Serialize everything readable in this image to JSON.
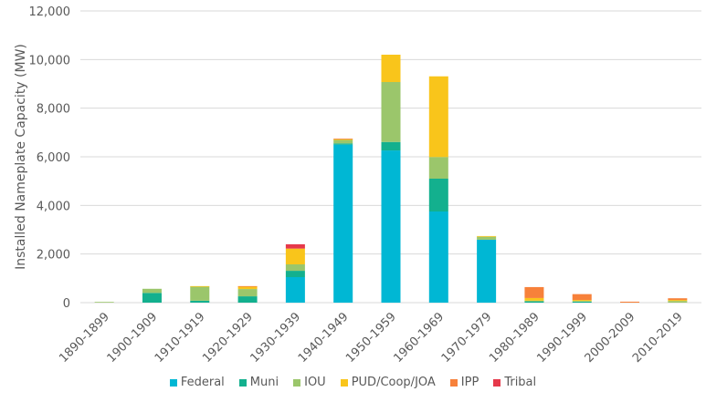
{
  "chart_data": {
    "type": "bar",
    "stacked": true,
    "title": "",
    "xlabel": "",
    "ylabel": "Installed Nameplate Capacity (MW)",
    "ylim": [
      0,
      12000
    ],
    "yticks": [
      0,
      2000,
      4000,
      6000,
      8000,
      10000,
      12000
    ],
    "ytick_labels": [
      "0",
      "2,000",
      "4,000",
      "6,000",
      "8,000",
      "10,000",
      "12,000"
    ],
    "grid": true,
    "legend_position": "bottom",
    "categories": [
      "1890-1899",
      "1900-1909",
      "1910-1919",
      "1920-1929",
      "1930-1939",
      "1940-1949",
      "1950-1959",
      "1960-1969",
      "1970-1979",
      "1980-1989",
      "1990-1999",
      "2000-2009",
      "2010-2019"
    ],
    "series": [
      {
        "name": "Federal",
        "color": "#00B7D4",
        "values": [
          0,
          0,
          0,
          0,
          1050,
          6500,
          6260,
          3750,
          2590,
          0,
          0,
          0,
          0
        ]
      },
      {
        "name": "Muni",
        "color": "#13B08E",
        "values": [
          0,
          400,
          80,
          260,
          260,
          50,
          350,
          1350,
          0,
          70,
          40,
          0,
          0
        ]
      },
      {
        "name": "IOU",
        "color": "#9BC66B",
        "values": [
          30,
          170,
          580,
          300,
          265,
          150,
          2465,
          890,
          120,
          10,
          30,
          0,
          70
        ]
      },
      {
        "name": "PUD/Coop/JOA",
        "color": "#F9C51B",
        "values": [
          0,
          0,
          20,
          110,
          650,
          20,
          1125,
          3320,
          30,
          110,
          40,
          0,
          40
        ]
      },
      {
        "name": "IPP",
        "color": "#F7813A",
        "values": [
          0,
          0,
          0,
          10,
          0,
          30,
          0,
          0,
          0,
          450,
          240,
          40,
          70
        ]
      },
      {
        "name": "Tribal",
        "color": "#E6394B",
        "values": [
          0,
          0,
          0,
          0,
          175,
          0,
          0,
          0,
          0,
          0,
          0,
          0,
          0
        ]
      }
    ]
  }
}
